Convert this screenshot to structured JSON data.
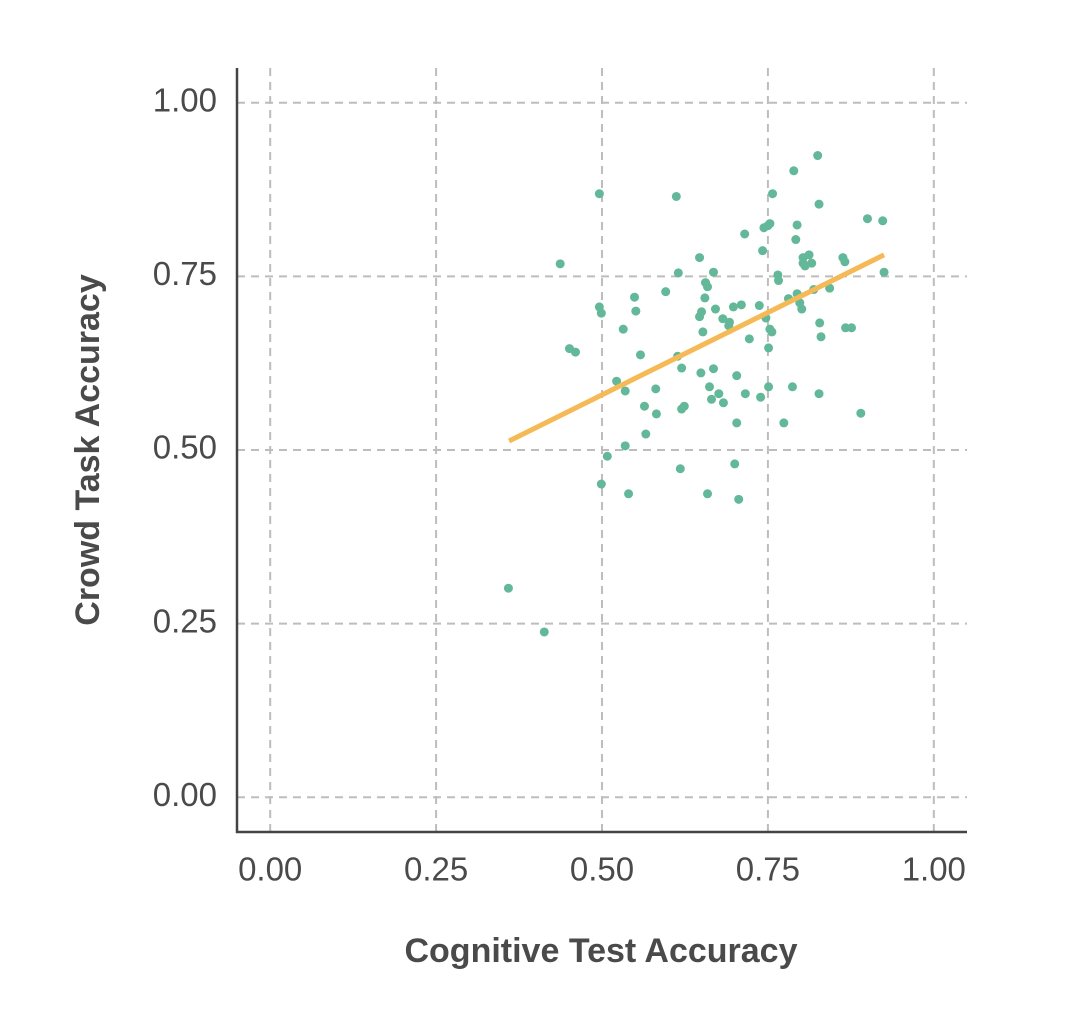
{
  "chart_data": {
    "type": "scatter",
    "x_label": "Cognitive Test Accuracy",
    "y_label": "Crowd Task Accuracy",
    "xlim": [
      -0.05,
      1.05
    ],
    "ylim": [
      -0.05,
      1.05
    ],
    "xticks": [
      {
        "value": 0,
        "label": "0.00"
      },
      {
        "value": 0.25,
        "label": "0.25"
      },
      {
        "value": 0.5,
        "label": "0.50"
      },
      {
        "value": 0.75,
        "label": "0.75"
      },
      {
        "value": 1,
        "label": "1.00"
      }
    ],
    "yticks": [
      {
        "value": 0,
        "label": "0.00"
      },
      {
        "value": 0.25,
        "label": "0.25"
      },
      {
        "value": 0.5,
        "label": "0.50"
      },
      {
        "value": 0.75,
        "label": "0.75"
      },
      {
        "value": 1,
        "label": "1.00"
      }
    ],
    "grid": true,
    "color": "#62b898",
    "x": [
      0.359,
      0.413,
      0.437,
      0.451,
      0.46,
      0.496,
      0.496,
      0.499,
      0.499,
      0.508,
      0.522,
      0.532,
      0.535,
      0.535,
      0.54,
      0.549,
      0.551,
      0.558,
      0.564,
      0.566,
      0.581,
      0.582,
      0.596,
      0.612,
      0.615,
      0.614,
      0.618,
      0.62,
      0.62,
      0.624,
      0.647,
      0.647,
      0.649,
      0.65,
      0.652,
      0.655,
      0.656,
      0.659,
      0.659,
      0.662,
      0.665,
      0.668,
      0.668,
      0.671,
      0.676,
      0.682,
      0.683,
      0.691,
      0.692,
      0.698,
      0.7,
      0.703,
      0.703,
      0.706,
      0.71,
      0.715,
      0.716,
      0.722,
      0.737,
      0.739,
      0.742,
      0.744,
      0.747,
      0.75,
      0.751,
      0.751,
      0.753,
      0.753,
      0.756,
      0.757,
      0.765,
      0.766,
      0.774,
      0.781,
      0.787,
      0.789,
      0.792,
      0.794,
      0.794,
      0.798,
      0.801,
      0.803,
      0.803,
      0.806,
      0.812,
      0.816,
      0.819,
      0.825,
      0.827,
      0.827,
      0.828,
      0.83,
      0.843,
      0.863,
      0.866,
      0.867,
      0.876,
      0.89,
      0.9,
      0.923,
      0.925
    ],
    "y": [
      0.301,
      0.238,
      0.768,
      0.646,
      0.641,
      0.869,
      0.706,
      0.697,
      0.451,
      0.491,
      0.599,
      0.674,
      0.585,
      0.506,
      0.437,
      0.72,
      0.7,
      0.637,
      0.563,
      0.523,
      0.588,
      0.552,
      0.728,
      0.865,
      0.755,
      0.635,
      0.473,
      0.618,
      0.559,
      0.563,
      0.777,
      0.692,
      0.611,
      0.699,
      0.67,
      0.719,
      0.741,
      0.735,
      0.437,
      0.591,
      0.573,
      0.756,
      0.617,
      0.703,
      0.581,
      0.689,
      0.568,
      0.679,
      0.684,
      0.706,
      0.48,
      0.607,
      0.539,
      0.429,
      0.709,
      0.811,
      0.581,
      0.66,
      0.708,
      0.576,
      0.787,
      0.82,
      0.69,
      0.823,
      0.647,
      0.591,
      0.826,
      0.674,
      0.67,
      0.869,
      0.752,
      0.744,
      0.539,
      0.718,
      0.591,
      0.902,
      0.803,
      0.824,
      0.725,
      0.712,
      0.703,
      0.777,
      0.769,
      0.765,
      0.781,
      0.769,
      0.731,
      0.924,
      0.854,
      0.581,
      0.683,
      0.663,
      0.733,
      0.777,
      0.771,
      0.676,
      0.676,
      0.553,
      0.833,
      0.83,
      0.756
    ],
    "fit_line": {
      "x": [
        0.36,
        0.925
      ],
      "y": [
        0.513,
        0.781
      ],
      "color": "#f5b955"
    }
  }
}
